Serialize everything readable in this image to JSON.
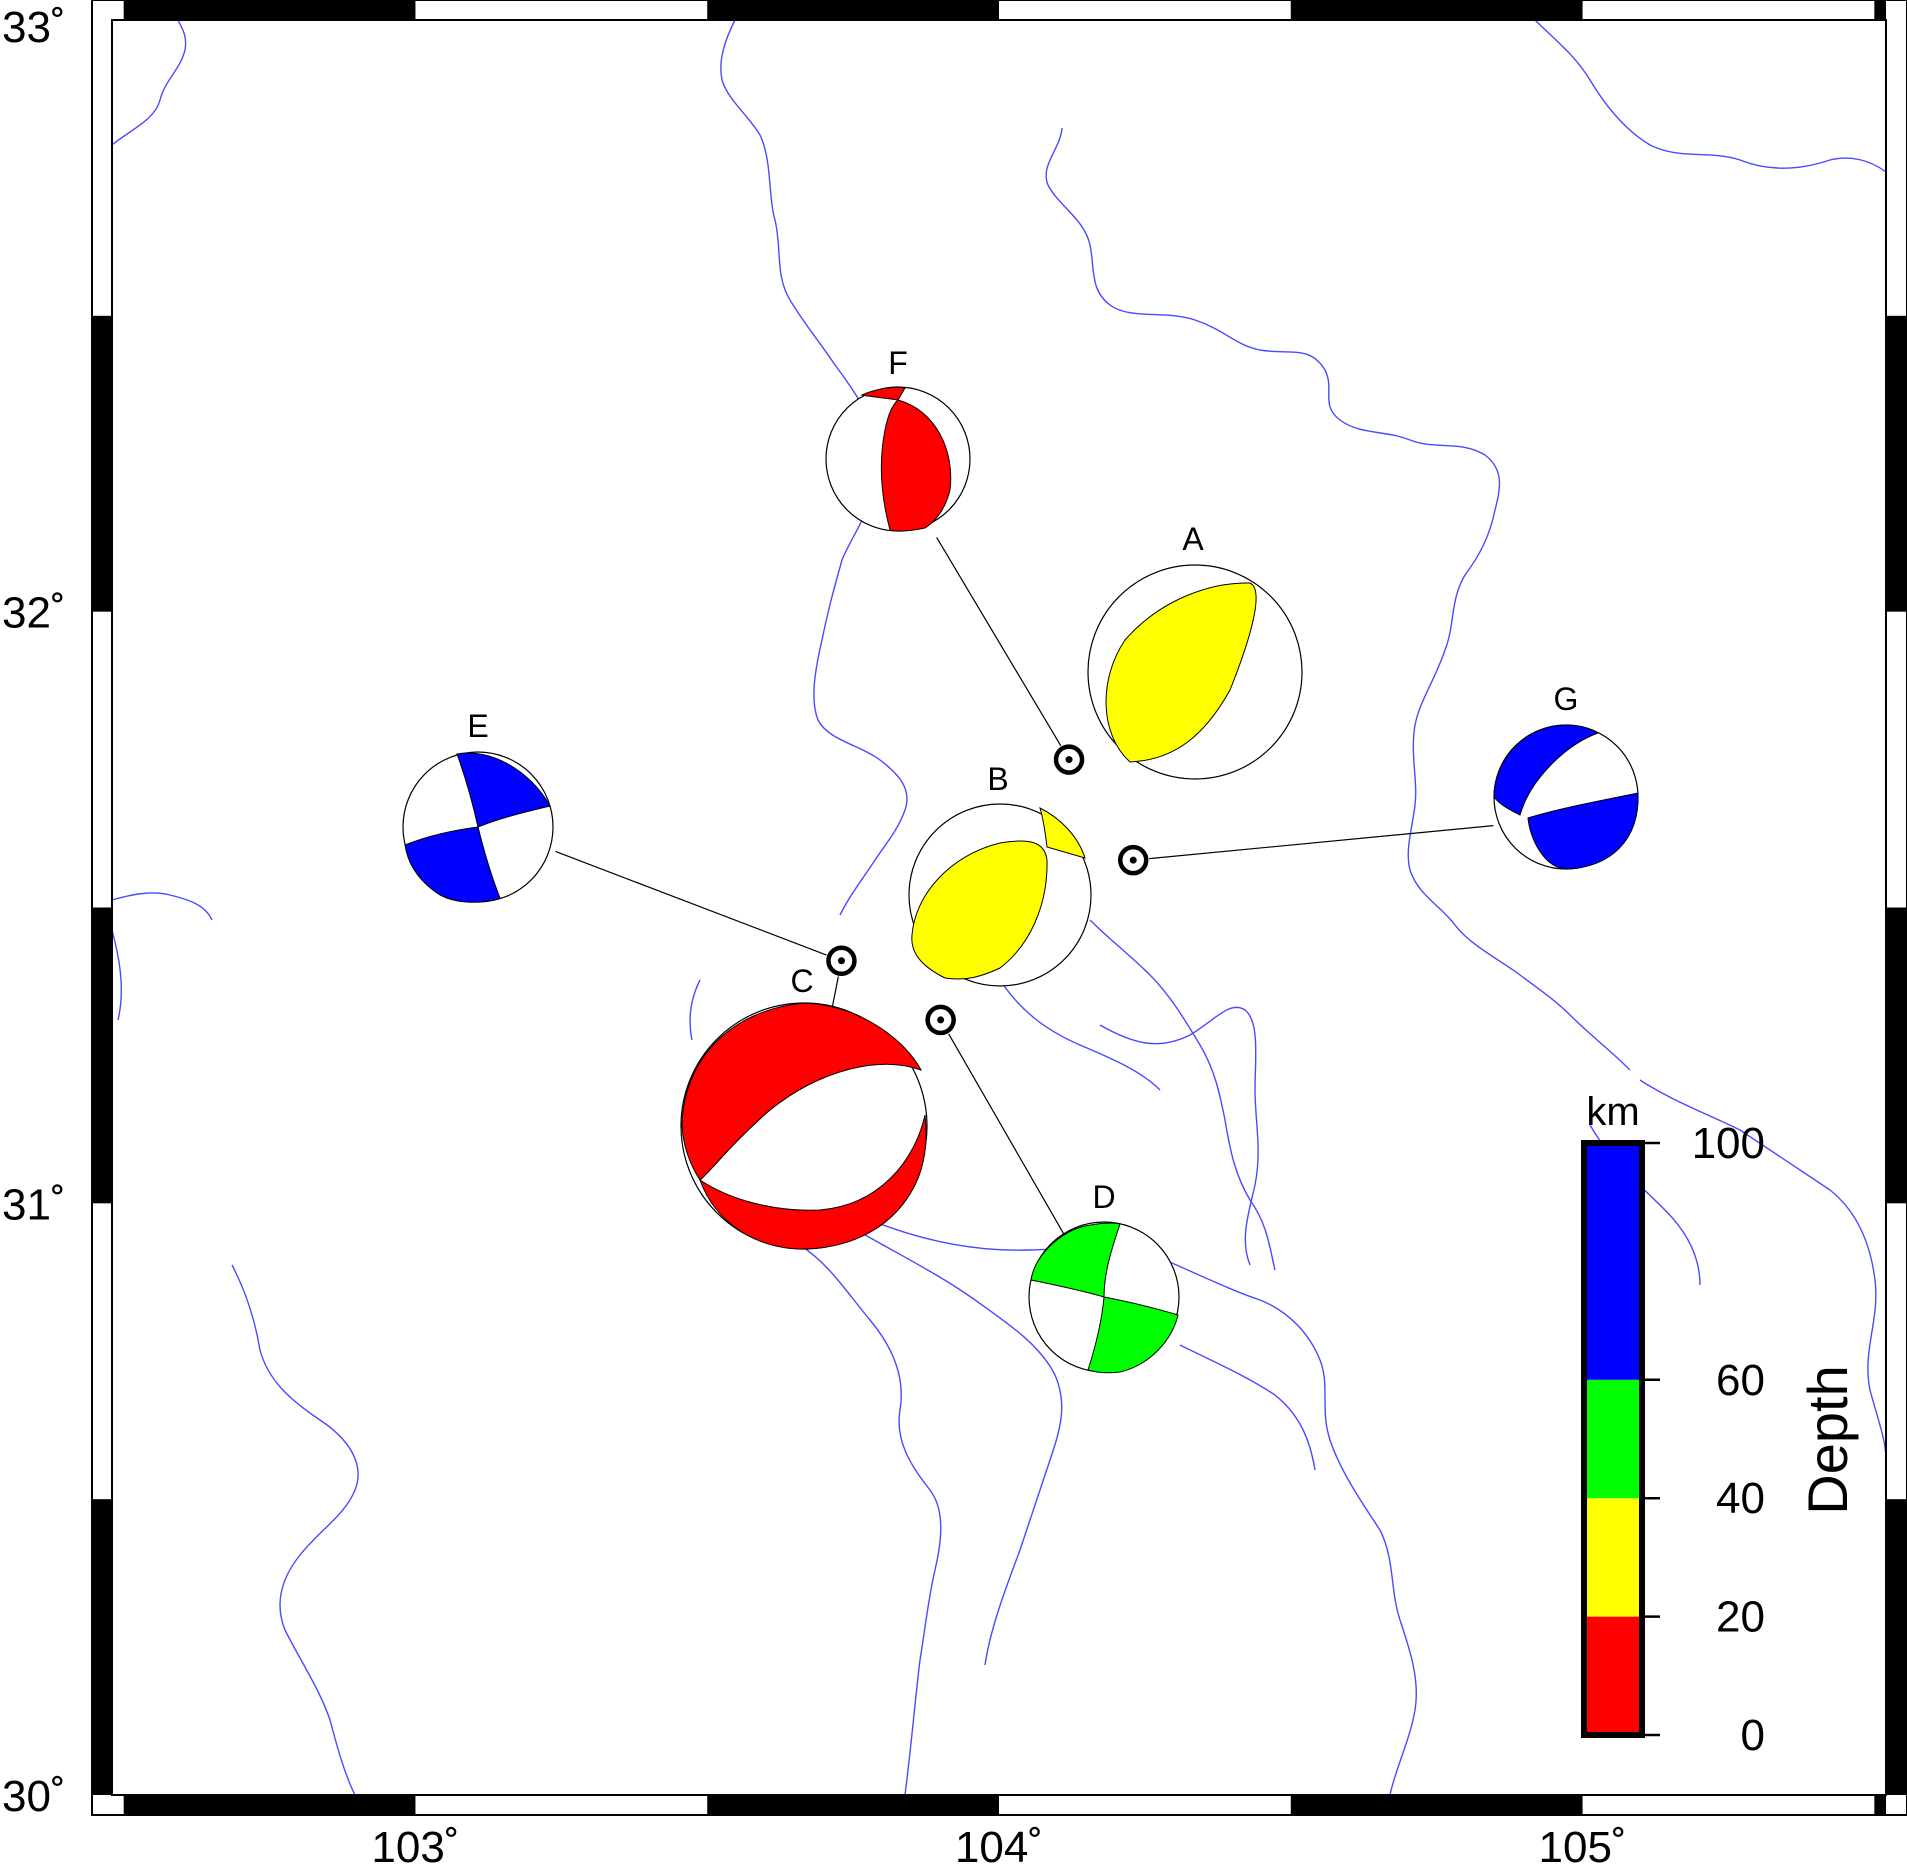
{
  "map": {
    "lon_range": [
      102.48,
      105.52
    ],
    "lat_range": [
      30.0,
      33.0
    ],
    "x_ticks": [
      {
        "value": 103,
        "label": "103˚"
      },
      {
        "value": 104,
        "label": "104˚"
      },
      {
        "value": 105,
        "label": "105˚"
      }
    ],
    "y_ticks": [
      {
        "value": 33,
        "label": "33˚"
      },
      {
        "value": 32,
        "label": "32˚"
      },
      {
        "value": 31,
        "label": "31˚"
      },
      {
        "value": 30,
        "label": "30˚"
      }
    ],
    "river_color": "#4a4aff"
  },
  "events": [
    {
      "id": "A",
      "lon": 104.12,
      "lat": 31.75,
      "depth_km": 30,
      "plot_lon": 104.33,
      "plot_lat": 31.87
    },
    {
      "id": "B",
      "lon": 104.23,
      "lat": 31.58,
      "depth_km": 30,
      "plot_lon": 104.0,
      "plot_lat": 31.51
    },
    {
      "id": "C",
      "lon": 103.73,
      "lat": 31.41,
      "depth_km": 10,
      "plot_lon": 103.67,
      "plot_lat": 31.11
    },
    {
      "id": "D",
      "lon": 103.9,
      "lat": 31.31,
      "depth_km": 50,
      "plot_lon": 104.18,
      "plot_lat": 30.83
    },
    {
      "id": "E",
      "lon": 103.73,
      "lat": 31.41,
      "depth_km": 80,
      "plot_lon": 103.12,
      "plot_lat": 31.64
    },
    {
      "id": "F",
      "lon": 104.12,
      "lat": 31.75,
      "depth_km": 10,
      "plot_lon": 103.83,
      "plot_lat": 32.23
    },
    {
      "id": "G",
      "lon": 104.23,
      "lat": 31.58,
      "depth_km": 80,
      "plot_lon": 104.97,
      "plot_lat": 31.65
    }
  ],
  "colorbar": {
    "title": "Depth",
    "unit": "km",
    "segments": [
      {
        "from": 0,
        "to": 20,
        "color": "#ff0000"
      },
      {
        "from": 20,
        "to": 40,
        "color": "#ffff00"
      },
      {
        "from": 40,
        "to": 60,
        "color": "#00ff00"
      },
      {
        "from": 60,
        "to": 100,
        "color": "#0000ff"
      }
    ],
    "ticks": [
      {
        "value": 100,
        "label": "100"
      },
      {
        "value": 60,
        "label": "60"
      },
      {
        "value": 40,
        "label": "40"
      },
      {
        "value": 20,
        "label": "20"
      },
      {
        "value": 0,
        "label": "0"
      }
    ]
  }
}
